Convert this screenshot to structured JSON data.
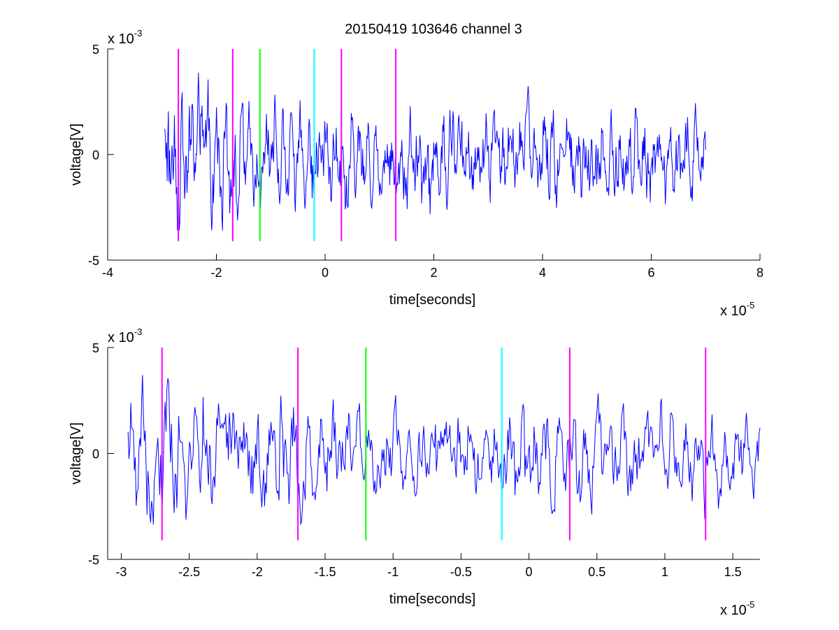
{
  "figure": {
    "title": "20150419 103646 channel 3"
  },
  "chart_data": [
    {
      "type": "line",
      "xlabel": "time[seconds]",
      "ylabel": "voltage[V]",
      "x_multiplier": "x 10",
      "x_exponent": "-5",
      "y_multiplier": "x 10",
      "y_exponent": "-3",
      "x_scale": 1e-05,
      "y_scale": 0.001,
      "xlim": [
        -4,
        8
      ],
      "ylim": [
        -5,
        5
      ],
      "xticks": [
        -4,
        -2,
        0,
        2,
        4,
        6,
        8
      ],
      "xtick_labels": [
        "-4",
        "-2",
        "0",
        "2",
        "4",
        "6",
        "8"
      ],
      "yticks": [
        -5,
        0,
        5
      ],
      "ytick_labels": [
        "-5",
        "0",
        "5"
      ],
      "grid": false,
      "signal": {
        "color": "#0000ff",
        "x_start": -2.95,
        "x_end": 7.0,
        "approx_min": -3.6,
        "approx_max": 4.4
      },
      "markers": [
        {
          "x": -2.7,
          "color": "#ff00ff",
          "y_from": -4.1,
          "y_to": 5
        },
        {
          "x": -1.7,
          "color": "#ff00ff",
          "y_from": -4.1,
          "y_to": 5
        },
        {
          "x": -1.2,
          "color": "#00ff00",
          "y_from": -4.1,
          "y_to": 5
        },
        {
          "x": -0.2,
          "color": "#00ffff",
          "y_from": -4.1,
          "y_to": 5
        },
        {
          "x": 0.3,
          "color": "#ff00ff",
          "y_from": -4.1,
          "y_to": 5
        },
        {
          "x": 1.3,
          "color": "#ff00ff",
          "y_from": -4.1,
          "y_to": 5
        }
      ]
    },
    {
      "type": "line",
      "xlabel": "time[seconds]",
      "ylabel": "voltage[V]",
      "x_multiplier": "x 10",
      "x_exponent": "-5",
      "y_multiplier": "x 10",
      "y_exponent": "-3",
      "x_scale": 1e-05,
      "y_scale": 0.001,
      "xlim": [
        -3.1,
        1.7
      ],
      "ylim": [
        -5,
        5
      ],
      "xticks": [
        -3,
        -2.5,
        -2,
        -1.5,
        -1,
        -0.5,
        0,
        0.5,
        1,
        1.5
      ],
      "xtick_labels": [
        "-3",
        "-2.5",
        "-2",
        "-1.5",
        "-1",
        "-0.5",
        "0",
        "0.5",
        "1",
        "1.5"
      ],
      "yticks": [
        -5,
        0,
        5
      ],
      "ytick_labels": [
        "-5",
        "0",
        "5"
      ],
      "grid": false,
      "signal": {
        "color": "#0000ff",
        "x_start": -2.95,
        "x_end": 1.7,
        "approx_min": -3.7,
        "approx_max": 3.7
      },
      "markers": [
        {
          "x": -2.7,
          "color": "#ff00ff",
          "y_from": -4.1,
          "y_to": 5
        },
        {
          "x": -1.7,
          "color": "#ff00ff",
          "y_from": -4.1,
          "y_to": 5
        },
        {
          "x": -1.2,
          "color": "#00ff00",
          "y_from": -4.1,
          "y_to": 5
        },
        {
          "x": -0.2,
          "color": "#00ffff",
          "y_from": -4.1,
          "y_to": 5
        },
        {
          "x": 0.3,
          "color": "#ff00ff",
          "y_from": -4.1,
          "y_to": 5
        },
        {
          "x": 1.3,
          "color": "#ff00ff",
          "y_from": -4.1,
          "y_to": 5
        }
      ]
    }
  ]
}
